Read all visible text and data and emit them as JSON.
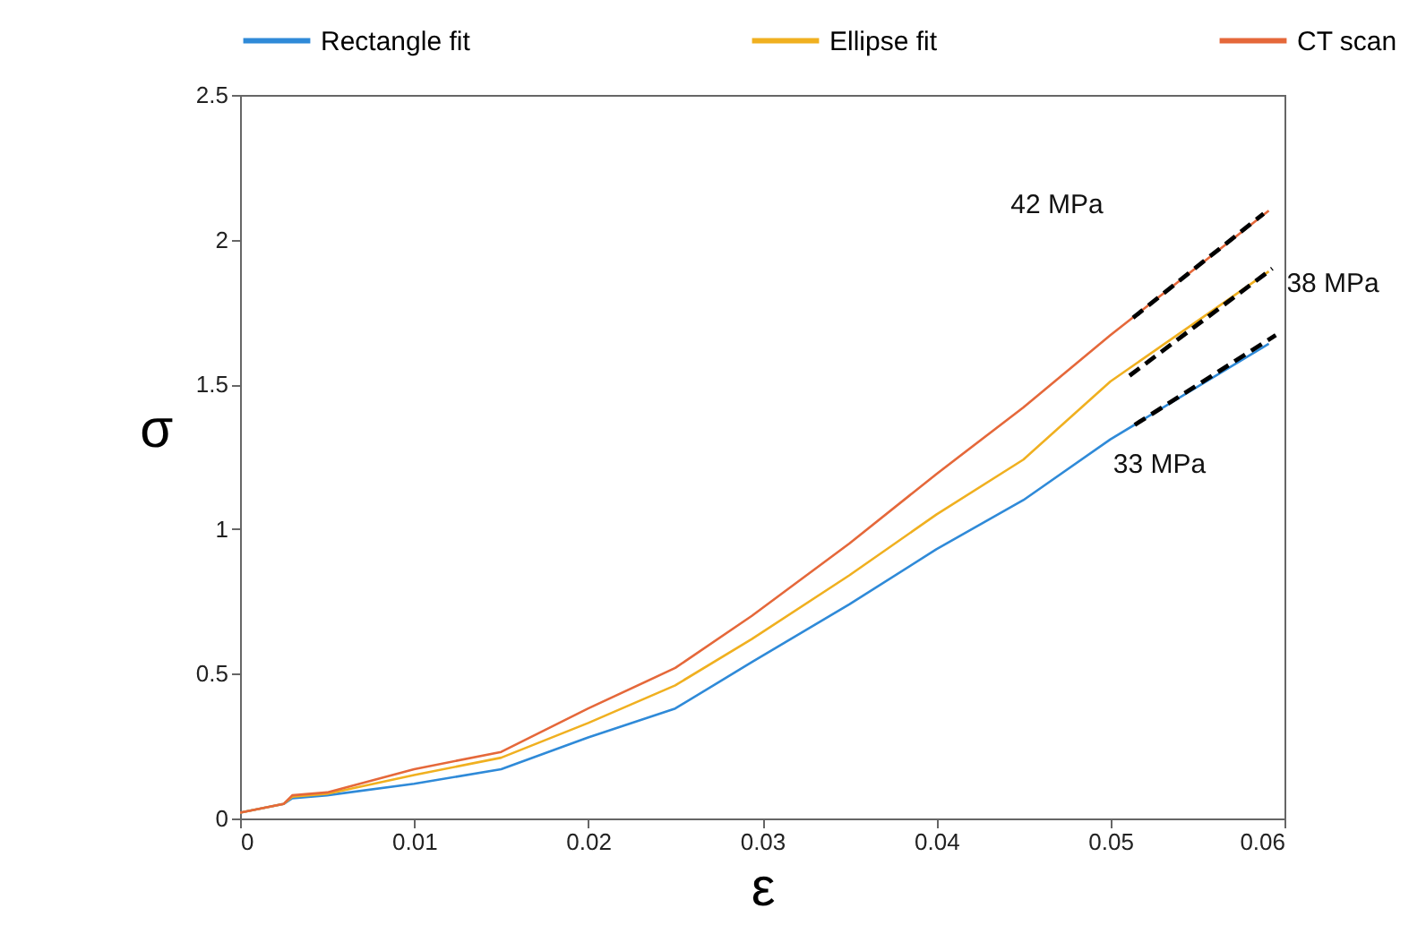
{
  "chart_data": {
    "type": "line",
    "xlabel": "ε",
    "ylabel": "σ",
    "x": [
      0,
      0.0025,
      0.003,
      0.005,
      0.01,
      0.015,
      0.02,
      0.025,
      0.0294,
      0.035,
      0.04,
      0.045,
      0.05,
      0.0591
    ],
    "series": [
      {
        "name": "Rectangle fit",
        "color": "#2f8ad8",
        "values": [
          0.02,
          0.05,
          0.07,
          0.08,
          0.12,
          0.17,
          0.28,
          0.38,
          0.54,
          0.74,
          0.93,
          1.1,
          1.31,
          1.64
        ]
      },
      {
        "name": "Ellipse fit",
        "color": "#f0b020",
        "values": [
          0.02,
          0.05,
          0.075,
          0.085,
          0.15,
          0.21,
          0.33,
          0.46,
          0.62,
          0.84,
          1.05,
          1.24,
          1.51,
          1.89
        ]
      },
      {
        "name": "CT scan",
        "color": "#e5683a",
        "values": [
          0.02,
          0.05,
          0.08,
          0.09,
          0.17,
          0.23,
          0.38,
          0.52,
          0.7,
          0.95,
          1.19,
          1.42,
          1.67,
          2.1
        ]
      },
      {
        "type": "line",
        "color": "#000000",
        "line_style": "dashed",
        "x": [
          0.0514,
          0.0595
        ],
        "values": [
          1.36,
          1.67
        ]
      },
      {
        "type": "line",
        "color": "#000000",
        "line_style": "dashed",
        "x": [
          0.0511,
          0.0593
        ],
        "values": [
          1.53,
          1.9
        ]
      },
      {
        "type": "line",
        "color": "#000000",
        "line_style": "dashed",
        "x": [
          0.0513,
          0.0588
        ],
        "values": [
          1.73,
          2.09
        ]
      }
    ],
    "xlim": [
      0,
      0.06
    ],
    "xticks": [
      0,
      0.01,
      0.02,
      0.03,
      0.04,
      0.05,
      0.06
    ],
    "ylim": [
      0,
      2.5
    ],
    "yticks": [
      0,
      0.5,
      1,
      1.5,
      2,
      2.5
    ],
    "grid": false,
    "legend": "top",
    "line_style": "solid",
    "annotations": [
      "42 MPa",
      {
        "text": "38 MPa",
        "x": 0.0593,
        "y": 1.9
      },
      {
        "text": "33 MPa",
        "x": 0.0514,
        "y": 1.36
      }
    ]
  }
}
